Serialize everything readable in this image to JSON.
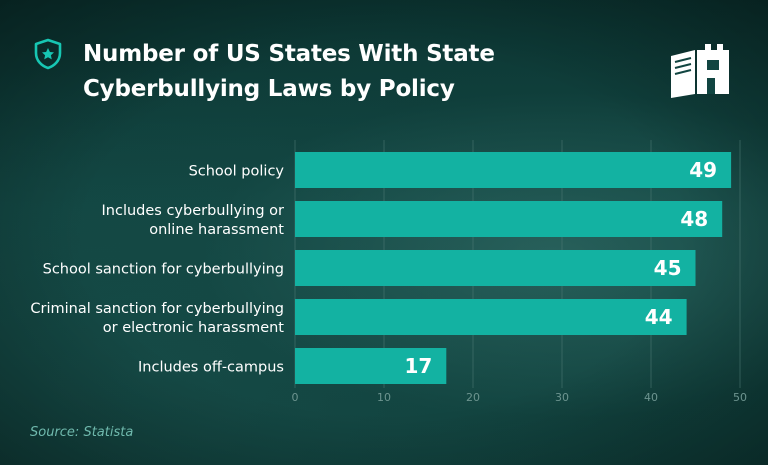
{
  "title": "Number of US States With State Cyberbullying Laws by Policy",
  "title_line1": "Number of US States With State",
  "title_line2": "Cyberbullying Laws by Policy",
  "source": "Source: Statista",
  "icons": {
    "badge": "shield-badge-icon",
    "logo": "book-castle-logo-icon"
  },
  "colors": {
    "bar": "#13b2a2",
    "bar_label": "#ffffff",
    "category_label": "#ffffff",
    "tick_label": "#6d948f",
    "gridline": "#4e7a75",
    "accent": "#17c7b3"
  },
  "chart_data": {
    "type": "bar",
    "orientation": "horizontal",
    "categories": [
      [
        "School policy"
      ],
      [
        "Includes cyberbullying or",
        "online harassment"
      ],
      [
        "School sanction for cyberbullying"
      ],
      [
        "Criminal sanction for cyberbullying",
        "or electronic harassment"
      ],
      [
        "Includes off-campus"
      ]
    ],
    "values": [
      49,
      48,
      45,
      44,
      17
    ],
    "xlim": [
      0,
      50
    ],
    "xticks": [
      0,
      10,
      20,
      30,
      40,
      50
    ],
    "grid": true,
    "xlabel": "",
    "ylabel": ""
  }
}
